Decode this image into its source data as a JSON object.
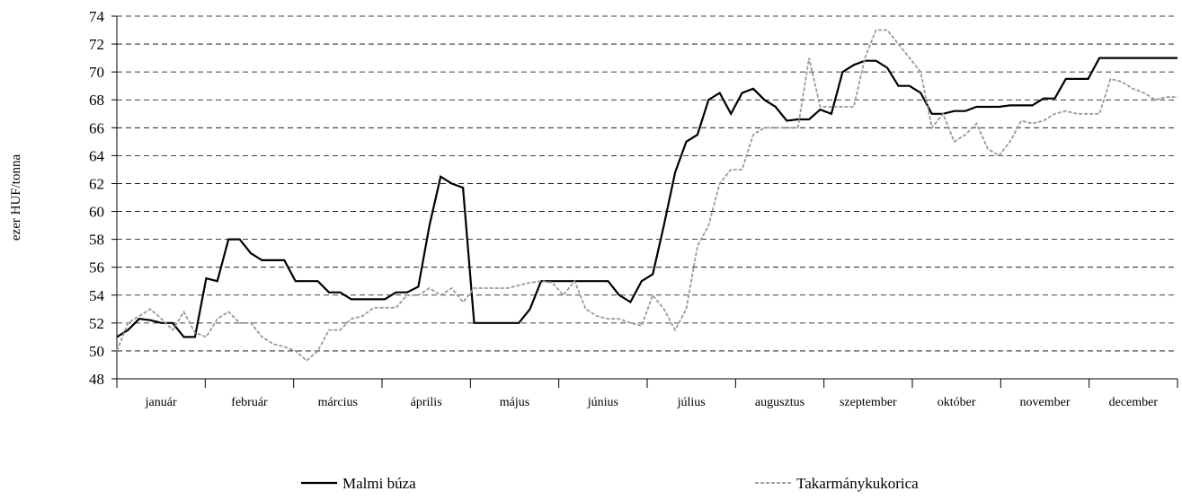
{
  "chart_data": {
    "type": "line",
    "y_label": "ezer HUF/tonna",
    "x_labels": [
      "január",
      "február",
      "március",
      "április",
      "május",
      "június",
      "július",
      "augusztus",
      "szeptember",
      "október",
      "november",
      "december"
    ],
    "ylim": [
      48,
      74
    ],
    "yticks": [
      48,
      50,
      52,
      54,
      56,
      58,
      60,
      62,
      64,
      66,
      68,
      70,
      72,
      74
    ],
    "grid": true,
    "legend": "bottom",
    "series": [
      {
        "name": "Malmi búza",
        "color": "#000000",
        "dash": false,
        "values": [
          51,
          51.5,
          52.3,
          52.2,
          52,
          52,
          51,
          51,
          55.2,
          55,
          58,
          58,
          57,
          56.5,
          56.5,
          56.5,
          55,
          55,
          55,
          54.2,
          54.2,
          53.7,
          53.7,
          53.7,
          53.7,
          54.2,
          54.2,
          54.6,
          59,
          62.5,
          62,
          61.7,
          52,
          52,
          52,
          52,
          52,
          53,
          55,
          55,
          55,
          55,
          55,
          55,
          55,
          54,
          53.5,
          55,
          55.5,
          59,
          62.8,
          65,
          65.5,
          68,
          68.5,
          67,
          68.5,
          68.8,
          68,
          67.5,
          66.5,
          66.6,
          66.6,
          67.3,
          67,
          70,
          70.5,
          70.8,
          70.8,
          70.3,
          69,
          69,
          68.5,
          67,
          67,
          67.2,
          67.2,
          67.5,
          67.5,
          67.5,
          67.6,
          67.6,
          67.6,
          68.1,
          68.1,
          69.5,
          69.5,
          69.5,
          71,
          71,
          71,
          71,
          71,
          71,
          71,
          71
        ]
      },
      {
        "name": "Takarmánykukorica",
        "color": "#999999",
        "dash": true,
        "values": [
          50,
          52,
          52.5,
          53,
          52.3,
          51.5,
          52.8,
          51.3,
          51,
          52.3,
          52.8,
          52,
          52,
          51,
          50.5,
          50.3,
          50,
          49.3,
          50,
          51.5,
          51.5,
          52.3,
          52.5,
          53.1,
          53.1,
          53.1,
          54,
          54,
          54.5,
          54,
          54.5,
          53.5,
          54.5,
          54.5,
          54.5,
          54.5,
          54.7,
          54.9,
          55,
          54.9,
          54,
          55,
          53,
          52.5,
          52.3,
          52.3,
          52,
          51.8,
          54,
          53,
          51.5,
          53,
          57.5,
          59,
          62,
          63,
          63,
          65.5,
          66,
          66,
          66,
          66,
          71,
          67.5,
          67.5,
          67.5,
          67.5,
          71,
          73,
          73,
          72,
          71,
          70,
          66,
          67,
          65,
          65.5,
          66.3,
          64.5,
          64,
          65,
          66.5,
          66.3,
          66.5,
          67,
          67.2,
          67,
          67,
          67,
          69.5,
          69.3,
          68.8,
          68.5,
          68,
          68.2,
          68.2
        ]
      }
    ]
  }
}
